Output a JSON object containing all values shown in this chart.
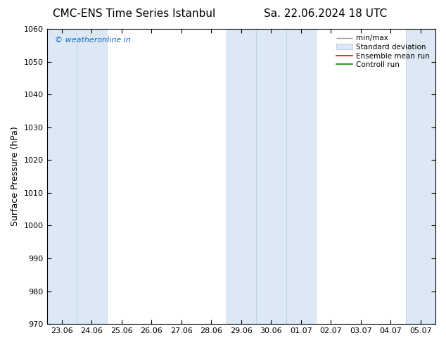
{
  "title_left": "CMC-ENS Time Series Istanbul",
  "title_right": "Sa. 22.06.2024 18 UTC",
  "ylabel": "Surface Pressure (hPa)",
  "ylim": [
    970,
    1060
  ],
  "yticks": [
    970,
    980,
    990,
    1000,
    1010,
    1020,
    1030,
    1040,
    1050,
    1060
  ],
  "xtick_labels": [
    "23.06",
    "24.06",
    "25.06",
    "26.06",
    "27.06",
    "28.06",
    "29.06",
    "30.06",
    "01.07",
    "02.07",
    "03.07",
    "04.07",
    "05.07"
  ],
  "shaded_band_color": "#dce9f5",
  "shaded_band_edge_color": "#b8d0e8",
  "background_color": "#ffffff",
  "watermark_text": "© weatheronline.in",
  "watermark_color": "#1565c0",
  "legend_entries": [
    "min/max",
    "Standard deviation",
    "Ensemble mean run",
    "Controll run"
  ],
  "legend_colors": [
    "#999999",
    "#bbccdd",
    "#ff0000",
    "#009000"
  ],
  "shaded_columns": [
    0,
    1,
    6,
    7,
    8,
    12
  ],
  "num_xticks": 13,
  "title_fontsize": 11,
  "ylabel_fontsize": 9,
  "tick_fontsize": 8,
  "watermark_fontsize": 8,
  "legend_fontsize": 7.5
}
